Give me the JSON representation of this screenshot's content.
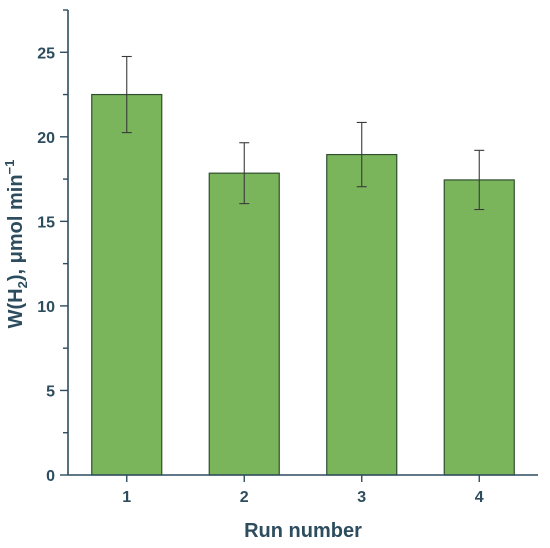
{
  "chart_data": {
    "type": "bar",
    "categories": [
      "1",
      "2",
      "3",
      "4"
    ],
    "values": [
      22.5,
      17.85,
      18.95,
      17.45
    ],
    "errors": [
      2.25,
      1.8,
      1.9,
      1.75
    ],
    "xlabel": "Run number",
    "ylabel": {
      "prefix": "W(H",
      "subscript": "2",
      "middle": "), μmol min",
      "superscript": "−1"
    },
    "ylim": [
      0,
      27.5
    ],
    "yticks": [
      0,
      5,
      10,
      15,
      20,
      25
    ],
    "grid": false,
    "legend": "none",
    "colors": {
      "bar": "#7ab55c",
      "axis": "#2d4d5e"
    }
  }
}
